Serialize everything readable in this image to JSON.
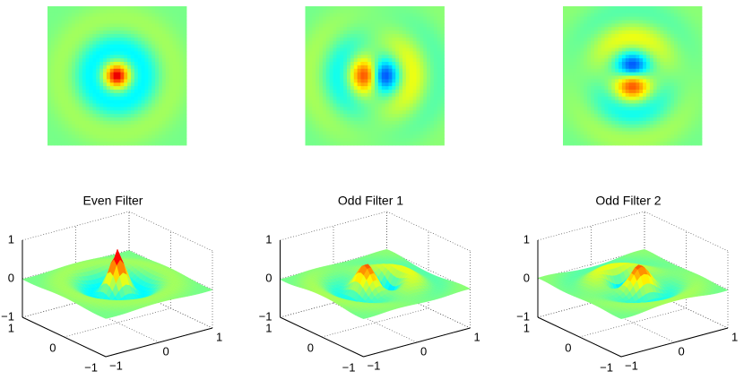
{
  "panels": [
    {
      "title": "Even Filter",
      "kind": "even",
      "zticks": [
        {
          "value": -1,
          "label": "−1"
        },
        0,
        1
      ],
      "yticks": [
        {
          "value": -1,
          "label": "−1"
        },
        0,
        1
      ],
      "xticks": [
        {
          "value": -1,
          "label": "−1"
        },
        0,
        1
      ]
    },
    {
      "title": "Odd Filter 1",
      "kind": "odd-x",
      "zticks": [
        {
          "value": -1,
          "label": "−1"
        },
        0,
        1
      ],
      "yticks": [
        {
          "value": -1,
          "label": "−1"
        },
        0,
        1
      ],
      "xticks": [
        {
          "value": -1,
          "label": "−1"
        },
        0,
        1
      ]
    },
    {
      "title": "Odd Filter 2",
      "kind": "odd-y",
      "zticks": [
        {
          "value": -1,
          "label": "−1"
        },
        0,
        1
      ],
      "yticks": [
        {
          "value": -1,
          "label": "−1"
        },
        0,
        1
      ],
      "xticks": [
        {
          "value": -1,
          "label": "−1"
        },
        0,
        1
      ]
    }
  ]
}
